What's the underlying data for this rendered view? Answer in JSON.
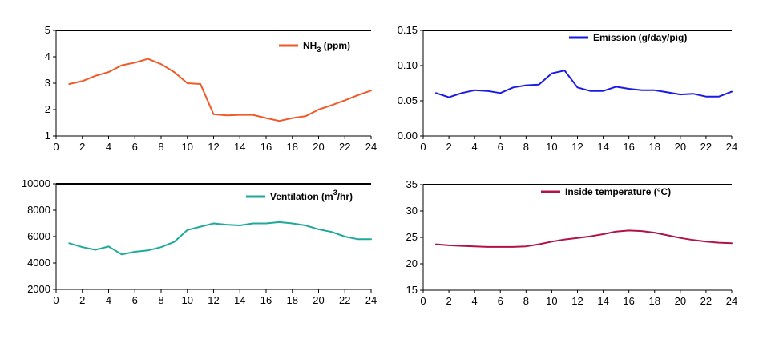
{
  "chart_data": [
    {
      "type": "line",
      "title": "",
      "xlabel": "",
      "ylabel": "",
      "x_ticks": [
        0,
        2,
        4,
        6,
        8,
        10,
        12,
        14,
        16,
        18,
        20,
        22,
        24
      ],
      "y_ticks": [
        1,
        2,
        3,
        4,
        5
      ],
      "y_tick_labels": [
        "1",
        "2",
        "3",
        "4",
        "5"
      ],
      "xlim": [
        0,
        24
      ],
      "ylim": [
        1,
        5
      ],
      "grid": false,
      "legend_position": "top-right",
      "legend": {
        "main": "NH",
        "sub": "3",
        "sup": "",
        "rest": " (ppm)"
      },
      "series": [
        {
          "name": "NH3 (ppm)",
          "color": "#f05a28",
          "x": [
            1,
            2,
            3,
            4,
            5,
            6,
            7,
            8,
            9,
            10,
            11,
            12,
            13,
            14,
            15,
            16,
            17,
            18,
            19,
            20,
            21,
            22,
            23,
            24
          ],
          "y": [
            2.97,
            3.08,
            3.28,
            3.42,
            3.68,
            3.78,
            3.92,
            3.72,
            3.42,
            3.0,
            2.97,
            1.82,
            1.78,
            1.8,
            1.8,
            1.68,
            1.57,
            1.68,
            1.75,
            2.0,
            2.17,
            2.35,
            2.55,
            2.72
          ]
        }
      ]
    },
    {
      "type": "line",
      "title": "",
      "xlabel": "",
      "ylabel": "",
      "x_ticks": [
        0,
        2,
        4,
        6,
        8,
        10,
        12,
        14,
        16,
        18,
        20,
        22,
        24
      ],
      "y_ticks": [
        0.0,
        0.05,
        0.1,
        0.15
      ],
      "y_tick_labels": [
        "0.00",
        "0.05",
        "0.10",
        "0.15"
      ],
      "xlim": [
        0,
        24
      ],
      "ylim": [
        0,
        0.15
      ],
      "grid": false,
      "legend_position": "top-right",
      "legend": {
        "main": "Emission (g/day/pig)",
        "sub": "",
        "sup": "",
        "rest": ""
      },
      "series": [
        {
          "name": "Emission (g/day/pig)",
          "color": "#1a1ae6",
          "x": [
            1,
            2,
            3,
            4,
            5,
            6,
            7,
            8,
            9,
            10,
            11,
            12,
            13,
            14,
            15,
            16,
            17,
            18,
            19,
            20,
            21,
            22,
            23,
            24
          ],
          "y": [
            0.061,
            0.055,
            0.061,
            0.065,
            0.064,
            0.061,
            0.069,
            0.072,
            0.073,
            0.089,
            0.093,
            0.069,
            0.064,
            0.064,
            0.07,
            0.067,
            0.065,
            0.065,
            0.062,
            0.059,
            0.06,
            0.056,
            0.056,
            0.063
          ]
        }
      ]
    },
    {
      "type": "line",
      "title": "",
      "xlabel": "",
      "ylabel": "",
      "x_ticks": [
        0,
        2,
        4,
        6,
        8,
        10,
        12,
        14,
        16,
        18,
        20,
        22,
        24
      ],
      "y_ticks": [
        2000,
        4000,
        6000,
        8000,
        10000
      ],
      "y_tick_labels": [
        "2000",
        "4000",
        "6000",
        "8000",
        "10000"
      ],
      "xlim": [
        0,
        24
      ],
      "ylim": [
        2000,
        10000
      ],
      "grid": false,
      "legend_position": "top-right",
      "legend": {
        "main": "Ventilation (m",
        "sub": "",
        "sup": "3",
        "rest": "/hr)"
      },
      "series": [
        {
          "name": "Ventilation (m3/hr)",
          "color": "#1fa99a",
          "x": [
            1,
            2,
            3,
            4,
            5,
            6,
            7,
            8,
            9,
            10,
            11,
            12,
            13,
            14,
            15,
            16,
            17,
            18,
            19,
            20,
            21,
            22,
            23,
            24
          ],
          "y": [
            5500,
            5200,
            5000,
            5250,
            4650,
            4850,
            4950,
            5200,
            5600,
            6500,
            6750,
            7000,
            6900,
            6850,
            7000,
            7000,
            7100,
            7000,
            6850,
            6550,
            6350,
            6000,
            5800,
            5800
          ]
        }
      ]
    },
    {
      "type": "line",
      "title": "",
      "xlabel": "",
      "ylabel": "",
      "x_ticks": [
        0,
        2,
        4,
        6,
        8,
        10,
        12,
        14,
        16,
        18,
        20,
        22,
        24
      ],
      "y_ticks": [
        15,
        20,
        25,
        30,
        35
      ],
      "y_tick_labels": [
        "15",
        "20",
        "25",
        "30",
        "35"
      ],
      "xlim": [
        0,
        24
      ],
      "ylim": [
        15,
        35
      ],
      "grid": false,
      "legend_position": "top-right",
      "legend": {
        "main": "Inside temperature (°C)",
        "sub": "",
        "sup": "",
        "rest": ""
      },
      "series": [
        {
          "name": "Inside temperature (°C)",
          "color": "#b01446",
          "x": [
            1,
            2,
            3,
            4,
            5,
            6,
            7,
            8,
            9,
            10,
            11,
            12,
            13,
            14,
            15,
            16,
            17,
            18,
            19,
            20,
            21,
            22,
            23,
            24
          ],
          "y": [
            23.7,
            23.5,
            23.4,
            23.3,
            23.2,
            23.2,
            23.2,
            23.3,
            23.7,
            24.2,
            24.6,
            24.9,
            25.2,
            25.6,
            26.1,
            26.3,
            26.2,
            25.9,
            25.4,
            24.9,
            24.5,
            24.2,
            24.0,
            23.9
          ]
        }
      ]
    }
  ]
}
